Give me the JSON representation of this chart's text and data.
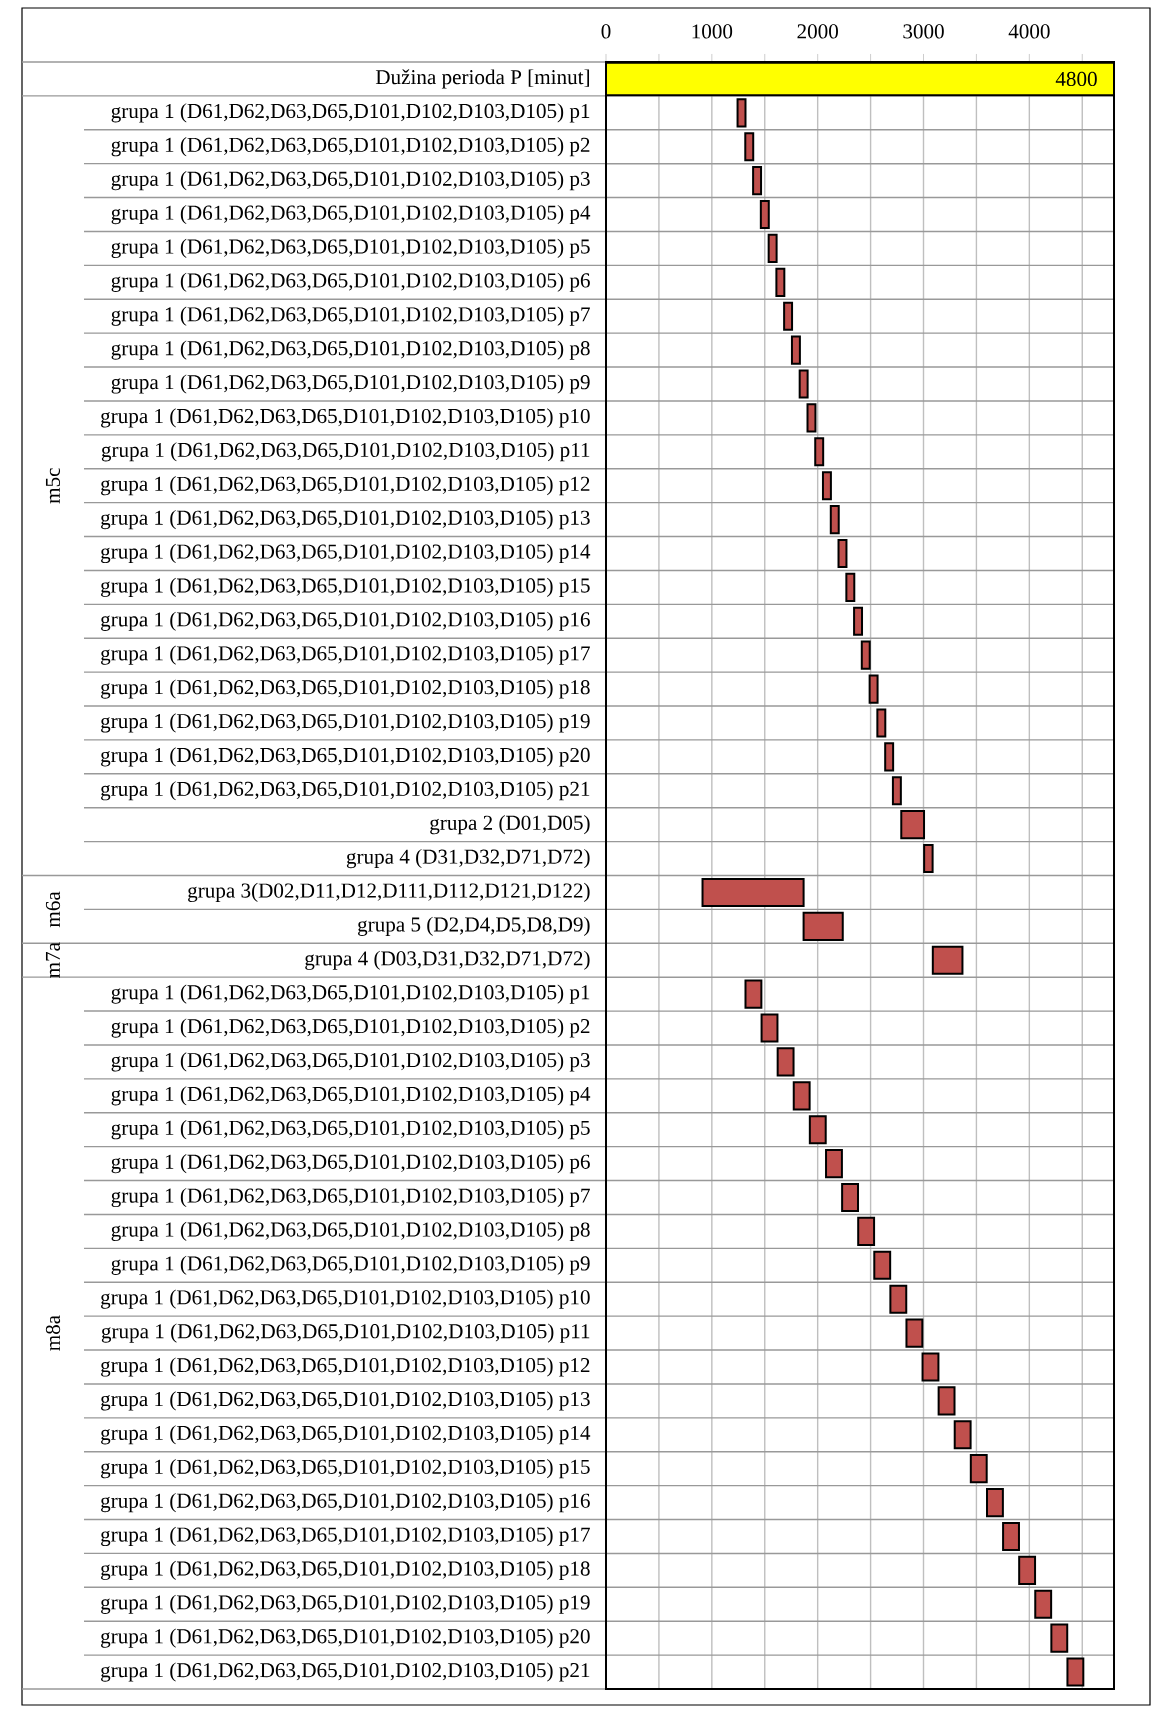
{
  "chart_data": {
    "type": "bar",
    "orientation": "horizontal",
    "categories": [
      "Dužina perioda P [minut]",
      "grupa 1 (D61,D62,D63,D65,D101,D102,D103,D105) p1",
      "grupa 1 (D61,D62,D63,D65,D101,D102,D103,D105) p2",
      "grupa 1 (D61,D62,D63,D65,D101,D102,D103,D105) p3",
      "grupa 1 (D61,D62,D63,D65,D101,D102,D103,D105) p4",
      "grupa 1 (D61,D62,D63,D65,D101,D102,D103,D105) p5",
      "grupa 1 (D61,D62,D63,D65,D101,D102,D103,D105) p6",
      "grupa 1 (D61,D62,D63,D65,D101,D102,D103,D105) p7",
      "grupa 1 (D61,D62,D63,D65,D101,D102,D103,D105) p8",
      "grupa 1 (D61,D62,D63,D65,D101,D102,D103,D105) p9",
      "grupa 1 (D61,D62,D63,D65,D101,D102,D103,D105) p10",
      "grupa 1 (D61,D62,D63,D65,D101,D102,D103,D105) p11",
      "grupa 1 (D61,D62,D63,D65,D101,D102,D103,D105) p12",
      "grupa 1 (D61,D62,D63,D65,D101,D102,D103,D105) p13",
      "grupa 1 (D61,D62,D63,D65,D101,D102,D103,D105) p14",
      "grupa 1 (D61,D62,D63,D65,D101,D102,D103,D105) p15",
      "grupa 1 (D61,D62,D63,D65,D101,D102,D103,D105) p16",
      "grupa 1 (D61,D62,D63,D65,D101,D102,D103,D105) p17",
      "grupa 1 (D61,D62,D63,D65,D101,D102,D103,D105) p18",
      "grupa 1 (D61,D62,D63,D65,D101,D102,D103,D105) p19",
      "grupa 1 (D61,D62,D63,D65,D101,D102,D103,D105) p20",
      "grupa 1 (D61,D62,D63,D65,D101,D102,D103,D105) p21",
      "grupa 2 (D01,D05)",
      "grupa 4 (D31,D32,D71,D72)",
      "grupa 3(D02,D11,D12,D111,D112,D121,D122)",
      "grupa 5 (D2,D4,D5,D8,D9)",
      "grupa 4 (D03,D31,D32,D71,D72)",
      "grupa 1 (D61,D62,D63,D65,D101,D102,D103,D105) p1",
      "grupa 1 (D61,D62,D63,D65,D101,D102,D103,D105) p2",
      "grupa 1 (D61,D62,D63,D65,D101,D102,D103,D105) p3",
      "grupa 1 (D61,D62,D63,D65,D101,D102,D103,D105) p4",
      "grupa 1 (D61,D62,D63,D65,D101,D102,D103,D105) p5",
      "grupa 1 (D61,D62,D63,D65,D101,D102,D103,D105) p6",
      "grupa 1 (D61,D62,D63,D65,D101,D102,D103,D105) p7",
      "grupa 1 (D61,D62,D63,D65,D101,D102,D103,D105) p8",
      "grupa 1 (D61,D62,D63,D65,D101,D102,D103,D105) p9",
      "grupa 1 (D61,D62,D63,D65,D101,D102,D103,D105) p10",
      "grupa 1 (D61,D62,D63,D65,D101,D102,D103,D105) p11",
      "grupa 1 (D61,D62,D63,D65,D101,D102,D103,D105) p12",
      "grupa 1 (D61,D62,D63,D65,D101,D102,D103,D105) p13",
      "grupa 1 (D61,D62,D63,D65,D101,D102,D103,D105) p14",
      "grupa 1 (D61,D62,D63,D65,D101,D102,D103,D105) p15",
      "grupa 1 (D61,D62,D63,D65,D101,D102,D103,D105) p16",
      "grupa 1 (D61,D62,D63,D65,D101,D102,D103,D105) p17",
      "grupa 1 (D61,D62,D63,D65,D101,D102,D103,D105) p18",
      "grupa 1 (D61,D62,D63,D65,D101,D102,D103,D105) p19",
      "grupa 1 (D61,D62,D63,D65,D101,D102,D103,D105) p20",
      "grupa 1 (D61,D62,D63,D65,D101,D102,D103,D105) p21"
    ],
    "base": [
      0,
      1243,
      1316,
      1390,
      1463,
      1537,
      1610,
      1683,
      1757,
      1830,
      1904,
      1977,
      2050,
      2124,
      2197,
      2271,
      2344,
      2417,
      2491,
      2564,
      2638,
      2711,
      2790,
      3006,
      912,
      1867,
      3088,
      1318,
      1470,
      1622,
      1774,
      1926,
      2079,
      2231,
      2383,
      2535,
      2687,
      2839,
      2991,
      3143,
      3295,
      3447,
      3600,
      3752,
      3904,
      4056,
      4208,
      4360
    ],
    "values": [
      4800,
      75,
      75,
      75,
      75,
      75,
      75,
      75,
      75,
      75,
      75,
      75,
      75,
      75,
      75,
      75,
      75,
      75,
      75,
      75,
      75,
      75,
      215,
      80,
      955,
      370,
      280,
      150,
      150,
      150,
      150,
      150,
      150,
      150,
      150,
      150,
      150,
      150,
      150,
      150,
      150,
      150,
      150,
      150,
      150,
      150,
      150,
      150
    ],
    "colors": [
      "#ffff00",
      "#c0504d",
      "#c0504d",
      "#c0504d",
      "#c0504d",
      "#c0504d",
      "#c0504d",
      "#c0504d",
      "#c0504d",
      "#c0504d",
      "#c0504d",
      "#c0504d",
      "#c0504d",
      "#c0504d",
      "#c0504d",
      "#c0504d",
      "#c0504d",
      "#c0504d",
      "#c0504d",
      "#c0504d",
      "#c0504d",
      "#c0504d",
      "#c0504d",
      "#c0504d",
      "#c0504d",
      "#c0504d",
      "#c0504d",
      "#c0504d",
      "#c0504d",
      "#c0504d",
      "#c0504d",
      "#c0504d",
      "#c0504d",
      "#c0504d",
      "#c0504d",
      "#c0504d",
      "#c0504d",
      "#c0504d",
      "#c0504d",
      "#c0504d",
      "#c0504d",
      "#c0504d",
      "#c0504d",
      "#c0504d",
      "#c0504d",
      "#c0504d",
      "#c0504d",
      "#c0504d"
    ],
    "value_labels": [
      "4800",
      null,
      null,
      null,
      null,
      null,
      null,
      null,
      null,
      null,
      null,
      null,
      null,
      null,
      null,
      null,
      null,
      null,
      null,
      null,
      null,
      null,
      null,
      null,
      null,
      null,
      null,
      null,
      null,
      null,
      null,
      null,
      null,
      null,
      null,
      null,
      null,
      null,
      null,
      null,
      null,
      null,
      null,
      null,
      null,
      null,
      null,
      null
    ],
    "xlim": [
      0,
      4800
    ],
    "xticks": [
      0,
      {
        "value": 500,
        "label": null
      },
      1000,
      {
        "value": 1500,
        "label": null
      },
      2000,
      {
        "value": 2500,
        "label": null
      },
      3000,
      {
        "value": 3500,
        "label": null
      },
      4000,
      {
        "value": 4500,
        "label": null
      }
    ],
    "grid": true,
    "annotations": [
      "m5c",
      "m6a",
      "m7a",
      "m8a"
    ]
  }
}
